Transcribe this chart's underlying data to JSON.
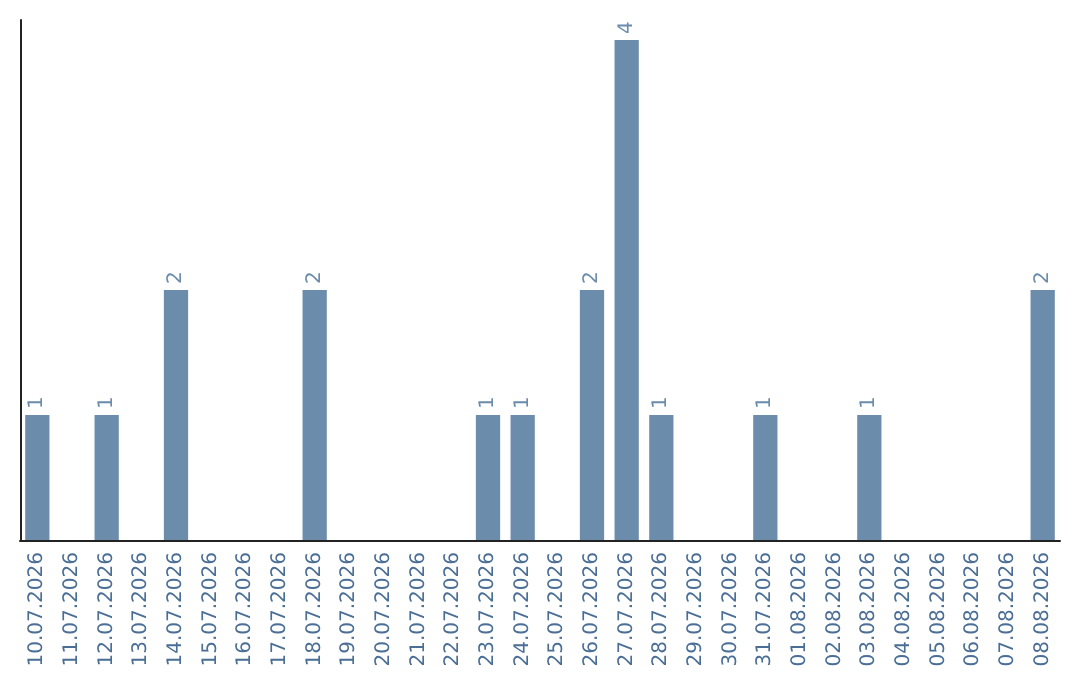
{
  "chart_data": {
    "type": "bar",
    "categories": [
      "10.07.2026",
      "11.07.2026",
      "12.07.2026",
      "13.07.2026",
      "14.07.2026",
      "15.07.2026",
      "16.07.2026",
      "17.07.2026",
      "18.07.2026",
      "19.07.2026",
      "20.07.2026",
      "21.07.2026",
      "22.07.2026",
      "23.07.2026",
      "24.07.2026",
      "25.07.2026",
      "26.07.2026",
      "27.07.2026",
      "28.07.2026",
      "29.07.2026",
      "30.07.2026",
      "31.07.2026",
      "01.08.2026",
      "02.08.2026",
      "03.08.2026",
      "04.08.2026",
      "05.08.2026",
      "06.08.2026",
      "07.08.2026",
      "08.08.2026"
    ],
    "values": [
      1,
      0,
      1,
      0,
      2,
      0,
      0,
      0,
      2,
      0,
      0,
      0,
      0,
      1,
      1,
      0,
      2,
      4,
      1,
      0,
      0,
      1,
      0,
      0,
      1,
      0,
      0,
      0,
      0,
      2
    ],
    "value_labels": [
      "1",
      null,
      "1",
      null,
      "2",
      null,
      null,
      null,
      "2",
      null,
      null,
      null,
      null,
      "1",
      "1",
      null,
      "2",
      "4",
      "1",
      null,
      null,
      "1",
      null,
      null,
      "1",
      null,
      null,
      null,
      null,
      "2"
    ],
    "color": "#6b8cab"
  }
}
